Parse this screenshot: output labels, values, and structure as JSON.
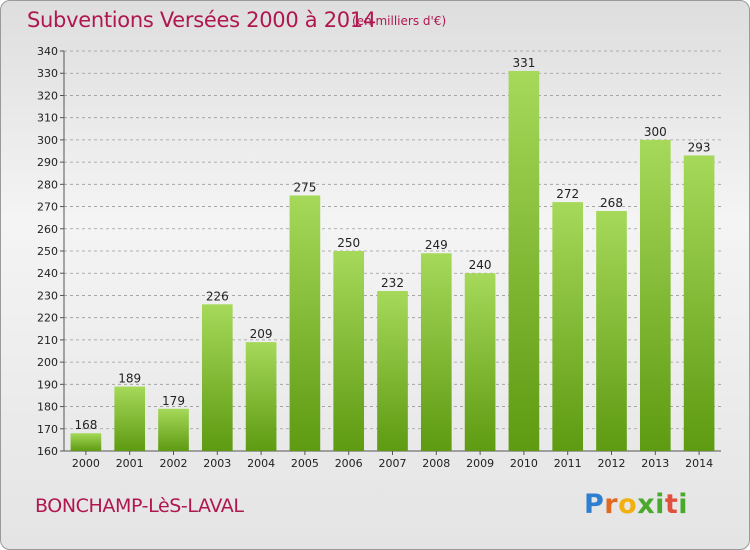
{
  "header": {
    "title": "Subventions Versées 2000 à 2014",
    "unit": "(en milliers d'€)"
  },
  "footer": {
    "town": "BONCHAMP-LèS-LAVAL",
    "logo": "Proxiti"
  },
  "colors": {
    "accent": "#b0164f",
    "bar_top": "#a6d95a",
    "bar_bottom": "#5e9a12",
    "grid": "#9a9a9a"
  },
  "chart_data": {
    "type": "bar",
    "title": "Subventions Versées 2000 à 2014",
    "xlabel": "",
    "ylabel": "",
    "categories": [
      "2000",
      "2001",
      "2002",
      "2003",
      "2004",
      "2005",
      "2006",
      "2007",
      "2008",
      "2009",
      "2010",
      "2011",
      "2012",
      "2013",
      "2014"
    ],
    "values": [
      168,
      189,
      179,
      226,
      209,
      275,
      250,
      232,
      249,
      240,
      331,
      272,
      268,
      300,
      293
    ],
    "ylim": [
      160,
      340
    ],
    "yticks": [
      160,
      170,
      180,
      190,
      200,
      210,
      220,
      230,
      240,
      250,
      260,
      270,
      280,
      290,
      300,
      310,
      320,
      330,
      340
    ],
    "grid": true,
    "data_labels": true
  }
}
